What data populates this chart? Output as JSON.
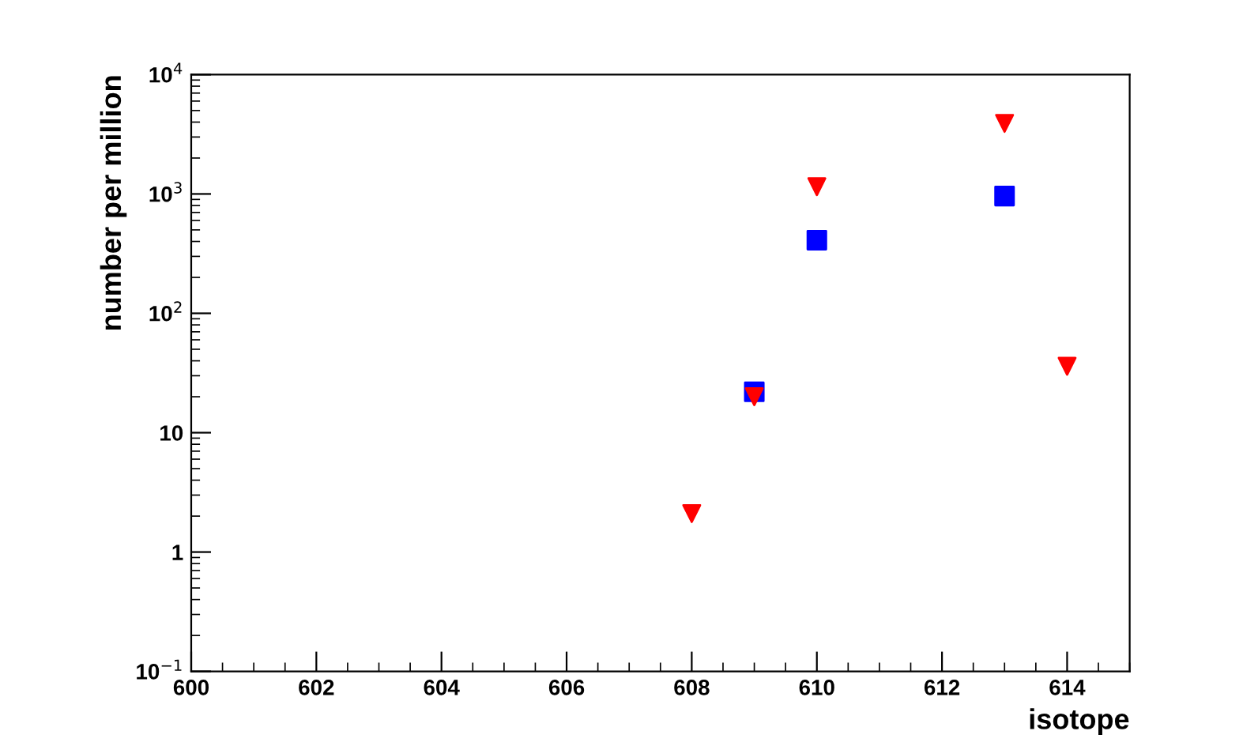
{
  "chart_data": {
    "type": "scatter",
    "xlabel": "isotope",
    "ylabel": "number per million",
    "log": "y",
    "grid": false,
    "xlim": [
      600,
      615
    ],
    "xticks": [
      600,
      602,
      604,
      606,
      608,
      610,
      612,
      614
    ],
    "ylim": [
      0.1,
      10000
    ],
    "yticks": [
      {
        "value": 0.1,
        "label": "10$^{−1}$"
      },
      {
        "value": 1,
        "label": "1"
      },
      {
        "value": 10,
        "label": "10"
      },
      {
        "value": 100,
        "label": "10$^{2}$"
      },
      {
        "value": 1000,
        "label": "10$^{3}$"
      },
      {
        "value": 10000,
        "label": "10$^{4}$"
      }
    ],
    "series": [
      {
        "color": "#0000ff",
        "marker": "square",
        "x": [
          609,
          610,
          613
        ],
        "values": [
          22,
          410,
          960
        ]
      },
      {
        "color": "#ff0000",
        "marker": "triangle",
        "x": [
          608,
          609,
          610,
          613,
          614
        ],
        "values": [
          2.1,
          20,
          1150,
          3900,
          36
        ]
      }
    ]
  }
}
